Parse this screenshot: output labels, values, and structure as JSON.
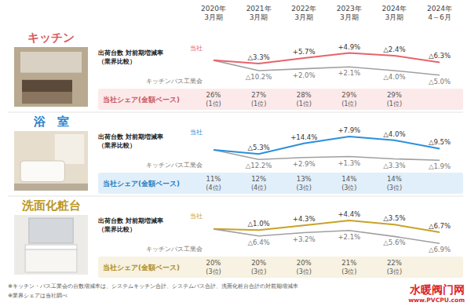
{
  "chart_data": {
    "type": "line",
    "tick_labels": false,
    "categories": [
      "2020年3月期",
      "2021年3月期",
      "2022年3月期",
      "2023年3月期",
      "2024年3月期",
      "2024年4～6月"
    ],
    "panels": [
      {
        "title": "キッチン",
        "subtitle": "出荷台数 対前期増減率（業界比較）",
        "ylim": [
          82,
          110
        ],
        "series": [
          {
            "name": "当社",
            "color": "#e8636b",
            "values": [
              100,
              96.7,
              102.2,
              107.2,
              104.6,
              98
            ],
            "annotations": [
              null,
              "△3.3%",
              "+5.7%",
              "+4.9%",
              "△2.4%",
              "△6.3%"
            ]
          },
          {
            "name": "キッチンバス工業会",
            "color": "#a0a0a0",
            "values": [
              100,
              89.8,
              91.6,
              93.5,
              89.8,
              85.3
            ],
            "annotations": [
              null,
              "△10.2%",
              "+2.0%",
              "+2.1%",
              "△4.0%",
              "△5.0%"
            ]
          }
        ],
        "share_label": "当社シェア(金額ベース)",
        "share_labels": [
          "26%",
          "27%",
          "28%",
          "29%",
          "29%",
          null
        ],
        "rank_labels": [
          "(1位)",
          "(1位)",
          "(1位)",
          "(1位)",
          "(1位)",
          null
        ]
      },
      {
        "title": "浴　室",
        "subtitle": "出荷台数 対前期増減率（業界比較）",
        "ylim": [
          84,
          120
        ],
        "series": [
          {
            "name": "当社",
            "color": "#2b8fdc",
            "values": [
              100,
              94.7,
              108.3,
              116.9,
              112.2,
              101.6
            ],
            "annotations": [
              null,
              "△5.3%",
              "+14.4%",
              "+7.9%",
              "△4.0%",
              "△9.5%"
            ]
          },
          {
            "name": "キッチンバス工業会",
            "color": "#a0a0a0",
            "values": [
              100,
              87.8,
              90.3,
              91.5,
              88.5,
              86.8
            ],
            "annotations": [
              null,
              "△12.2%",
              "+2.9%",
              "+1.3%",
              "△3.3%",
              "△1.9%"
            ]
          }
        ],
        "share_label": "当社シェア(金額ベース)",
        "share_labels": [
          "11%",
          "12%",
          "13%",
          "14%",
          "14%",
          null
        ],
        "rank_labels": [
          "(4位)",
          "(4位)",
          "(3位)",
          "(3位)",
          "(3位)",
          null
        ]
      },
      {
        "title": "洗面化粧台",
        "subtitle": "出荷台数 対前期増減率（業界比較）",
        "ylim": [
          84,
          110
        ],
        "series": [
          {
            "name": "当社",
            "color": "#c9a227",
            "values": [
              100,
              99,
              103.3,
              107.8,
              104,
              97
            ],
            "annotations": [
              null,
              "△1.0%",
              "+4.3%",
              "+4.4%",
              "△3.5%",
              "△6.7%"
            ]
          },
          {
            "name": "キッチンバス工業会",
            "color": "#a0a0a0",
            "values": [
              100,
              93.6,
              96.6,
              98.6,
              93.1,
              86.7
            ],
            "annotations": [
              null,
              "△6.4%",
              "+3.2%",
              "+2.1%",
              "△5.6%",
              "△6.9%"
            ]
          }
        ],
        "share_label": "当社シェア(金額ベース)",
        "share_labels": [
          "20%",
          "20%",
          "20%",
          "21%",
          "22%",
          null
        ],
        "rank_labels": [
          "(3位)",
          "(3位)",
          "(3位)",
          "(3位)",
          "(3位)",
          null
        ]
      }
    ],
    "notes": [
      "※キッチン・バス工業会の台数増減率は、システムキッチン合計、システムバス合計、洗面化粧台合計の対前期増減率",
      "※業界シェアは当社調べ"
    ],
    "watermark": [
      "水暖阀门网",
      "www.PVCPU.com"
    ]
  }
}
